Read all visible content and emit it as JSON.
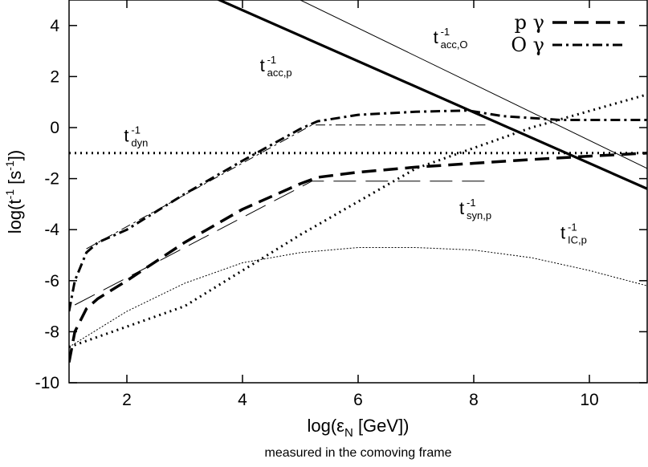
{
  "chart_data": {
    "type": "line",
    "xlabel": "log(εN [GeV])",
    "xlabel_main": "log(ε",
    "xlabel_sub": "N",
    "xlabel_tail": " [GeV])",
    "subtitle": "measured in the comoving frame",
    "ylabel": "log(t-1 [s-1])",
    "ylabel_parts": [
      "log(t",
      "-1",
      " [s",
      "-1",
      "])"
    ],
    "xlim": [
      1,
      11
    ],
    "ylim": [
      -10,
      5
    ],
    "xticks": [
      2,
      4,
      6,
      8,
      10
    ],
    "yticks": [
      -10,
      -8,
      -6,
      -4,
      -2,
      0,
      2,
      4
    ],
    "tick_labels_x": [
      "2",
      "4",
      "6",
      "8",
      "10"
    ],
    "tick_labels_y": [
      "-10",
      "-8",
      "-6",
      "-4",
      "-2",
      "0",
      "2",
      "4"
    ],
    "legend_position": "top-right",
    "legend": [
      {
        "label": "p γ",
        "style": "long-dash"
      },
      {
        "label": "O γ",
        "style": "dash-dot"
      }
    ],
    "series": [
      {
        "label": "t_acc,p^-1",
        "style": "thick-solid",
        "x": [
          1,
          11
        ],
        "y": [
          7.6,
          -2.4
        ]
      },
      {
        "label": "t_acc,O^-1",
        "style": "thin-solid",
        "x": [
          1,
          11
        ],
        "y": [
          9.4,
          -1.6
        ]
      },
      {
        "label": "t_dyn^-1",
        "style": "dotted-thick",
        "x": [
          1,
          11
        ],
        "y": [
          -1.0,
          -1.0
        ]
      },
      {
        "label": "t_syn,p^-1",
        "style": "dotted-thick",
        "x": [
          1,
          3,
          5,
          7,
          9,
          11
        ],
        "y": [
          -8.6,
          -7.0,
          -4.2,
          -1.6,
          0.0,
          1.3
        ]
      },
      {
        "label": "t_IC,p^-1",
        "style": "dotted-thin",
        "x": [
          1,
          2,
          3,
          4,
          5,
          6,
          7,
          8,
          9,
          10,
          11
        ],
        "y": [
          -8.6,
          -7.2,
          -6.1,
          -5.3,
          -4.9,
          -4.7,
          -4.7,
          -4.8,
          -5.1,
          -5.6,
          -6.2
        ]
      },
      {
        "name": "p γ",
        "style": "long-dash-thick",
        "x": [
          1,
          1.1,
          1.3,
          1.5,
          2,
          3,
          4,
          5,
          5.3,
          6,
          7,
          8,
          9,
          10,
          11
        ],
        "y": [
          -9.2,
          -8.0,
          -7.1,
          -6.7,
          -6.0,
          -4.5,
          -3.2,
          -2.2,
          -1.95,
          -1.75,
          -1.55,
          -1.4,
          -1.25,
          -1.12,
          -1.0
        ]
      },
      {
        "label": "pγ approximation",
        "style": "long-dash-thin",
        "x": [
          1.1,
          5.2,
          8.2
        ],
        "y": [
          -6.95,
          -2.1,
          -2.1
        ]
      },
      {
        "name": "O γ",
        "style": "dash-dot-thick",
        "x": [
          1,
          1.1,
          1.3,
          1.5,
          2,
          3,
          4,
          5,
          5.3,
          6,
          7,
          7.9,
          8.5,
          9.5,
          11
        ],
        "y": [
          -7.2,
          -6.0,
          -4.9,
          -4.5,
          -4.0,
          -2.6,
          -1.3,
          -0.05,
          0.25,
          0.5,
          0.62,
          0.67,
          0.45,
          0.3,
          0.3
        ]
      },
      {
        "label": "Oγ approximation",
        "style": "dash-dot-thin",
        "x": [
          1.3,
          5.2,
          8.2
        ],
        "y": [
          -4.75,
          0.1,
          0.1
        ]
      }
    ],
    "annotations": [
      {
        "base": "t",
        "sup": "-1",
        "sub": "acc,p",
        "x": 4.3,
        "y": 2.2
      },
      {
        "base": "t",
        "sup": "-1",
        "sub": "acc,O",
        "x": 7.3,
        "y": 3.3
      },
      {
        "base": "t",
        "sup": "-1",
        "sub": "dyn",
        "x": 1.95,
        "y": -0.55
      },
      {
        "base": "t",
        "sup": "-1",
        "sub": "syn,p",
        "x": 7.75,
        "y": -3.4
      },
      {
        "base": "t",
        "sup": "-1",
        "sub": "IC,p",
        "x": 9.5,
        "y": -4.35
      }
    ]
  }
}
